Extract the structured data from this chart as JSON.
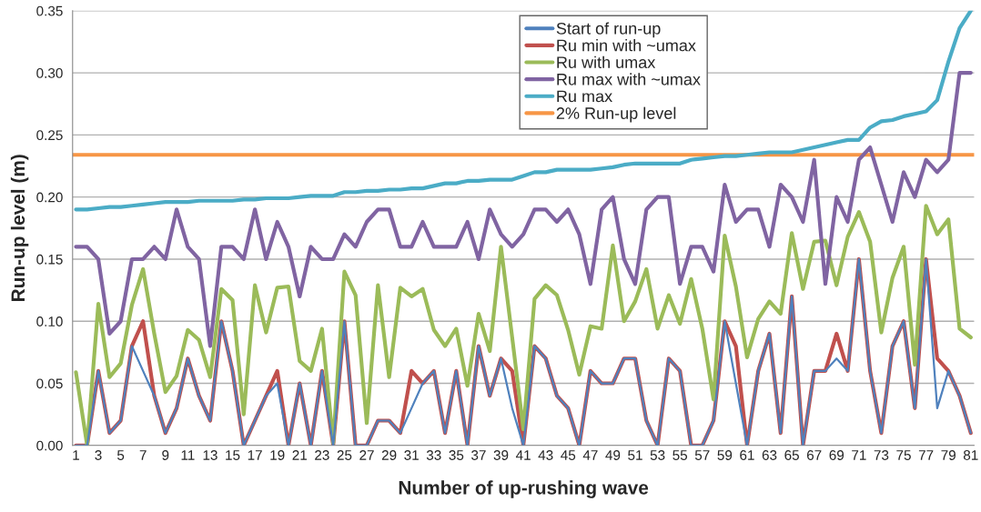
{
  "chart_data": {
    "type": "line",
    "xlabel": "Number of up-rushing wave",
    "ylabel": "Run-up level (m)",
    "categories": [
      "1",
      null,
      "3",
      null,
      "5",
      null,
      "7",
      null,
      "9",
      null,
      "11",
      null,
      "13",
      null,
      "15",
      null,
      "17",
      null,
      "19",
      null,
      "21",
      null,
      "23",
      null,
      "25",
      null,
      "27",
      null,
      "29",
      null,
      "31",
      null,
      "33",
      null,
      "35",
      null,
      "37",
      null,
      "39",
      null,
      "41",
      null,
      "43",
      null,
      "45",
      null,
      "47",
      null,
      "49",
      null,
      "51",
      null,
      "53",
      null,
      "55",
      null,
      "57",
      null,
      "59",
      null,
      "61",
      null,
      "63",
      null,
      "65",
      null,
      "67",
      null,
      "69",
      null,
      "71",
      null,
      "73",
      null,
      "75",
      null,
      "77",
      null,
      "79",
      null,
      "81"
    ],
    "series": [
      {
        "name": "Start of run-up",
        "color": "#4f81bd",
        "values": [
          0,
          0,
          0.06,
          0.01,
          0.02,
          0.08,
          0.06,
          0.04,
          0.01,
          0.03,
          0.07,
          0.04,
          0.02,
          0.1,
          0.06,
          0,
          0.02,
          0.04,
          0.05,
          0,
          0.05,
          0,
          0.06,
          0,
          0.1,
          0,
          0,
          0.02,
          0.02,
          0.01,
          0.03,
          0.05,
          0.06,
          0.01,
          0.06,
          0,
          0.08,
          0.04,
          0.07,
          0.03,
          0,
          0.08,
          0.07,
          0.04,
          0.03,
          0,
          0.06,
          0.05,
          0.05,
          0.07,
          0.07,
          0.02,
          0,
          0.07,
          0.06,
          0,
          0,
          0.02,
          0.1,
          0.05,
          0,
          0.06,
          0.09,
          0.01,
          0.12,
          0,
          0.06,
          0.06,
          0.07,
          0.06,
          0.15,
          0.06,
          0.01,
          0.08,
          0.1,
          0.03,
          0.15,
          0.03,
          0.06,
          0.04,
          0.01
        ]
      },
      {
        "name": "Ru min with ~umax",
        "color": "#c0504d",
        "values": [
          0,
          0,
          0.06,
          0.01,
          0.02,
          0.08,
          0.1,
          0.04,
          0.01,
          0.03,
          0.07,
          0.04,
          0.02,
          0.1,
          0.06,
          0,
          0.02,
          0.04,
          0.06,
          0,
          0.05,
          0,
          0.06,
          0,
          0.1,
          0,
          0,
          0.02,
          0.02,
          0.01,
          0.06,
          0.05,
          0.06,
          0.01,
          0.06,
          0,
          0.08,
          0.04,
          0.07,
          0.06,
          0,
          0.08,
          0.07,
          0.04,
          0.03,
          0,
          0.06,
          0.05,
          0.05,
          0.07,
          0.07,
          0.02,
          0,
          0.07,
          0.06,
          0,
          0,
          0.02,
          0.1,
          0.08,
          0,
          0.06,
          0.09,
          0.01,
          0.12,
          0,
          0.06,
          0.06,
          0.09,
          0.06,
          0.15,
          0.06,
          0.01,
          0.08,
          0.1,
          0.03,
          0.15,
          0.07,
          0.06,
          0.04,
          0.01
        ]
      },
      {
        "name": "Ru with umax",
        "color": "#9bbb59",
        "values": [
          0.059,
          0,
          0.114,
          0.055,
          0.066,
          0.113,
          0.142,
          0.09,
          0.043,
          0.056,
          0.093,
          0.085,
          0.055,
          0.126,
          0.117,
          0.025,
          0.129,
          0.091,
          0.127,
          0.128,
          0.068,
          0.06,
          0.094,
          0.002,
          0.14,
          0.121,
          0.018,
          0.129,
          0.055,
          0.127,
          0.12,
          0.126,
          0.093,
          0.08,
          0.094,
          0.048,
          0.106,
          0.076,
          0.16,
          0.087,
          0.013,
          0.118,
          0.129,
          0.121,
          0.093,
          0.057,
          0.096,
          0.094,
          0.161,
          0.1,
          0.116,
          0.142,
          0.094,
          0.121,
          0.098,
          0.134,
          0.094,
          0.037,
          0.169,
          0.128,
          0.071,
          0.102,
          0.116,
          0.106,
          0.171,
          0.126,
          0.164,
          0.165,
          0.129,
          0.168,
          0.188,
          0.164,
          0.091,
          0.135,
          0.16,
          0.065,
          0.193,
          0.17,
          0.182,
          0.094,
          0.087
        ]
      },
      {
        "name": "Ru max with ~umax",
        "color": "#8064a2",
        "values": [
          0.16,
          0.16,
          0.15,
          0.09,
          0.1,
          0.15,
          0.15,
          0.16,
          0.15,
          0.19,
          0.16,
          0.15,
          0.08,
          0.16,
          0.16,
          0.15,
          0.19,
          0.15,
          0.18,
          0.16,
          0.12,
          0.16,
          0.15,
          0.15,
          0.17,
          0.16,
          0.18,
          0.19,
          0.19,
          0.16,
          0.16,
          0.18,
          0.16,
          0.16,
          0.16,
          0.18,
          0.15,
          0.19,
          0.17,
          0.16,
          0.17,
          0.19,
          0.19,
          0.18,
          0.19,
          0.17,
          0.13,
          0.19,
          0.2,
          0.15,
          0.13,
          0.19,
          0.2,
          0.2,
          0.13,
          0.16,
          0.16,
          0.14,
          0.21,
          0.18,
          0.19,
          0.19,
          0.16,
          0.21,
          0.2,
          0.18,
          0.23,
          0.13,
          0.2,
          0.18,
          0.23,
          0.24,
          0.21,
          0.18,
          0.22,
          0.2,
          0.23,
          0.22,
          0.23,
          0.3,
          0.3
        ]
      },
      {
        "name": "Ru max",
        "color": "#4bacc6",
        "values": [
          0.19,
          0.19,
          0.191,
          0.192,
          0.192,
          0.193,
          0.194,
          0.195,
          0.196,
          0.196,
          0.196,
          0.197,
          0.197,
          0.197,
          0.197,
          0.198,
          0.198,
          0.199,
          0.199,
          0.199,
          0.2,
          0.201,
          0.201,
          0.201,
          0.204,
          0.204,
          0.205,
          0.205,
          0.206,
          0.206,
          0.207,
          0.207,
          0.209,
          0.211,
          0.211,
          0.213,
          0.213,
          0.214,
          0.214,
          0.214,
          0.217,
          0.22,
          0.22,
          0.222,
          0.222,
          0.222,
          0.222,
          0.223,
          0.224,
          0.226,
          0.227,
          0.227,
          0.227,
          0.227,
          0.227,
          0.23,
          0.231,
          0.232,
          0.233,
          0.233,
          0.234,
          0.235,
          0.236,
          0.236,
          0.236,
          0.238,
          0.24,
          0.242,
          0.244,
          0.246,
          0.246,
          0.256,
          0.261,
          0.262,
          0.265,
          0.267,
          0.269,
          0.278,
          0.309,
          0.336,
          0.35
        ]
      }
    ],
    "ref_lines": [
      {
        "axis": "y",
        "value": 0.234,
        "label": "2% Run-up level",
        "color": "#f79646",
        "line_style": "solid"
      }
    ],
    "ylim": [
      0,
      0.35
    ],
    "yticks": [
      {
        "value": 0,
        "label": "0.00"
      },
      {
        "value": 0.05,
        "label": "0.05"
      },
      {
        "value": 0.1,
        "label": "0.10"
      },
      {
        "value": 0.15,
        "label": "0.15"
      },
      {
        "value": 0.2,
        "label": "0.20"
      },
      {
        "value": 0.25,
        "label": "0.25"
      },
      {
        "value": 0.3,
        "label": "0.30"
      },
      {
        "value": 0.35,
        "label": "0.35"
      }
    ],
    "grid": "y",
    "legend": "top",
    "marker": "none",
    "line_style": "solid"
  }
}
